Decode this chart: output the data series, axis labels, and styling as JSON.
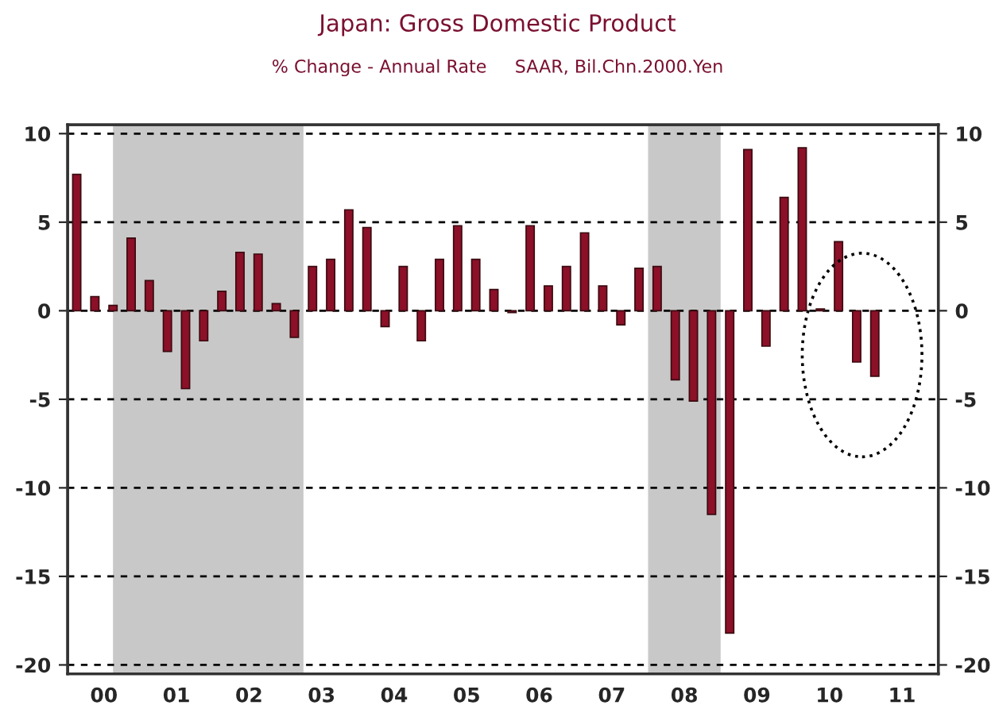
{
  "chart_data": {
    "type": "bar",
    "title": "Japan: Gross Domestic Product",
    "subtitle": "% Change - Annual Rate     SAAR, Bil.Chn.2000.Yen",
    "categories": [
      null,
      "00",
      null,
      null,
      null,
      "01",
      null,
      null,
      null,
      "02",
      null,
      null,
      null,
      "03",
      null,
      null,
      null,
      "04",
      null,
      null,
      null,
      "05",
      null,
      null,
      null,
      "06",
      null,
      null,
      null,
      "07",
      null,
      null,
      null,
      "08",
      null,
      null,
      null,
      "09",
      null,
      null,
      null,
      "10",
      null,
      null,
      null,
      "11",
      null,
      null
    ],
    "values": [
      7.7,
      0.8,
      0.3,
      4.1,
      1.7,
      -2.3,
      -4.4,
      -1.7,
      1.1,
      3.3,
      3.2,
      0.4,
      -1.5,
      2.5,
      2.9,
      5.7,
      4.7,
      -0.9,
      2.5,
      -1.7,
      2.9,
      4.8,
      2.9,
      1.2,
      -0.1,
      4.8,
      1.4,
      2.5,
      4.4,
      1.4,
      -0.8,
      2.4,
      2.5,
      -3.9,
      -5.1,
      -11.5,
      -18.2,
      9.1,
      -2.0,
      6.4,
      9.2,
      0.1,
      3.9,
      -2.9,
      -3.7,
      null,
      null,
      null
    ],
    "color": "#8b1028",
    "ylim": [
      -20.5,
      10.5
    ],
    "yticks": [
      -20,
      -15,
      -10,
      -5,
      0,
      5,
      10
    ],
    "y2lim": [
      -20.5,
      10.5
    ],
    "y2ticks": [
      -20,
      -15,
      -10,
      -5,
      0,
      5,
      10
    ],
    "grid": "y",
    "line_style": "dashed"
  }
}
